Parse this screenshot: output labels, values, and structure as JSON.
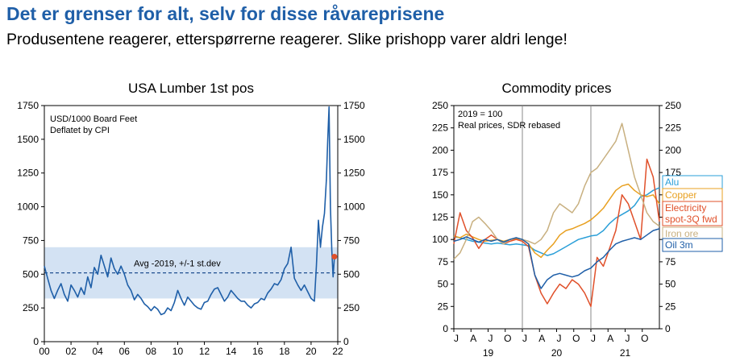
{
  "page": {
    "title": "Det er grenser for alt, selv for disse råvareprisene",
    "subtitle": "Produsentene reagerer, etterspørrerne reagerer. Slike prishopp varer aldri lenge!"
  },
  "chart_data": [
    {
      "type": "line",
      "title": "USA Lumber 1st pos",
      "notes": [
        "USD/1000 Board Feet",
        "Deflatet by CPI"
      ],
      "band_label": "Avg -2019, +/-1 st.dev",
      "colors": {
        "line": "#1f5fa8",
        "band": "#d3e2f3",
        "marker": "#e0502a"
      },
      "ylim": [
        0,
        1750
      ],
      "yticks": [
        0,
        250,
        500,
        750,
        1000,
        1250,
        1500,
        1750
      ],
      "xlim": [
        2000,
        2022
      ],
      "xticks": [
        "00",
        "02",
        "04",
        "06",
        "08",
        "10",
        "12",
        "14",
        "16",
        "18",
        "20",
        "22"
      ],
      "avg": 510,
      "band": [
        320,
        700
      ],
      "last_value": 630,
      "series": [
        {
          "x": [
            2000,
            2000.25,
            2000.5,
            2000.75,
            2001,
            2001.25,
            2001.5,
            2001.75,
            2002,
            2002.25,
            2002.5,
            2002.75,
            2003,
            2003.25,
            2003.5,
            2003.75,
            2004,
            2004.25,
            2004.5,
            2004.75,
            2005,
            2005.25,
            2005.5,
            2005.75,
            2006,
            2006.25,
            2006.5,
            2006.75,
            2007,
            2007.25,
            2007.5,
            2007.75,
            2008,
            2008.25,
            2008.5,
            2008.75,
            2009,
            2009.25,
            2009.5,
            2009.75,
            2010,
            2010.25,
            2010.5,
            2010.75,
            2011,
            2011.25,
            2011.5,
            2011.75,
            2012,
            2012.25,
            2012.5,
            2012.75,
            2013,
            2013.25,
            2013.5,
            2013.75,
            2014,
            2014.25,
            2014.5,
            2014.75,
            2015,
            2015.25,
            2015.5,
            2015.75,
            2016,
            2016.25,
            2016.5,
            2016.75,
            2017,
            2017.25,
            2017.5,
            2017.75,
            2018,
            2018.25,
            2018.5,
            2018.75,
            2019,
            2019.25,
            2019.5,
            2019.75,
            2020,
            2020.25,
            2020.4,
            2020.55,
            2020.7,
            2020.85,
            2021,
            2021.15,
            2021.25,
            2021.35,
            2021.45,
            2021.55,
            2021.65,
            2021.75
          ],
          "values": [
            560,
            470,
            380,
            320,
            380,
            430,
            350,
            300,
            420,
            380,
            330,
            400,
            350,
            480,
            400,
            550,
            500,
            640,
            560,
            480,
            620,
            540,
            500,
            560,
            500,
            420,
            380,
            310,
            350,
            320,
            280,
            260,
            230,
            260,
            240,
            200,
            210,
            250,
            230,
            290,
            380,
            320,
            270,
            330,
            300,
            270,
            250,
            240,
            290,
            300,
            350,
            390,
            400,
            350,
            300,
            330,
            380,
            350,
            320,
            300,
            300,
            270,
            250,
            280,
            290,
            320,
            310,
            360,
            390,
            430,
            420,
            460,
            540,
            580,
            700,
            470,
            420,
            380,
            420,
            370,
            320,
            300,
            560,
            900,
            700,
            850,
            950,
            1200,
            1500,
            1740,
            1000,
            680,
            480,
            630
          ]
        }
      ]
    },
    {
      "type": "line",
      "title": "Commodity prices",
      "notes": [
        "2019 = 100",
        "Real prices, SDR rebased"
      ],
      "ylim": [
        0,
        250
      ],
      "yticks": [
        0,
        25,
        50,
        75,
        100,
        125,
        150,
        175,
        200,
        225,
        250
      ],
      "xticks": [
        "J",
        "A",
        "J",
        "O",
        "J",
        "A",
        "J",
        "O",
        "J",
        "A",
        "J",
        "O"
      ],
      "year_labels": [
        "19",
        "20",
        "21"
      ],
      "series": [
        {
          "name": "Alu",
          "color": "#2a9fd8",
          "x": [
            0,
            1,
            2,
            3,
            4,
            5,
            6,
            7,
            8,
            9,
            10,
            11,
            12,
            13,
            14,
            15,
            16,
            17,
            18,
            19,
            20,
            21,
            22,
            23,
            24,
            25,
            26,
            27,
            28,
            29,
            30,
            31,
            32,
            33
          ],
          "values": [
            103,
            102,
            100,
            98,
            97,
            96,
            95,
            96,
            95,
            94,
            95,
            94,
            93,
            88,
            85,
            82,
            84,
            88,
            92,
            96,
            100,
            102,
            104,
            105,
            110,
            118,
            124,
            128,
            132,
            138,
            148,
            150,
            155,
            158
          ]
        },
        {
          "name": "Copper",
          "color": "#e8a020",
          "x": [
            0,
            1,
            2,
            3,
            4,
            5,
            6,
            7,
            8,
            9,
            10,
            11,
            12,
            13,
            14,
            15,
            16,
            17,
            18,
            19,
            20,
            21,
            22,
            23,
            24,
            25,
            26,
            27,
            28,
            29,
            30,
            31,
            32,
            33
          ],
          "values": [
            104,
            102,
            106,
            103,
            100,
            98,
            99,
            100,
            98,
            100,
            101,
            100,
            95,
            85,
            80,
            88,
            95,
            105,
            110,
            112,
            115,
            118,
            122,
            128,
            135,
            145,
            155,
            160,
            162,
            155,
            150,
            148,
            150,
            140
          ]
        },
        {
          "name": "Electricity spot-3Q fwd",
          "color": "#e0502a",
          "x": [
            0,
            1,
            2,
            3,
            4,
            5,
            6,
            7,
            8,
            9,
            10,
            11,
            12,
            13,
            14,
            15,
            16,
            17,
            18,
            19,
            20,
            21,
            22,
            23,
            24,
            25,
            26,
            27,
            28,
            29,
            30,
            31,
            32,
            33
          ],
          "values": [
            95,
            130,
            110,
            102,
            90,
            100,
            105,
            100,
            95,
            98,
            100,
            98,
            92,
            60,
            40,
            28,
            40,
            50,
            45,
            55,
            50,
            40,
            25,
            80,
            70,
            90,
            110,
            150,
            140,
            120,
            100,
            190,
            170,
            120
          ]
        },
        {
          "name": "Iron ore",
          "color": "#c8b080",
          "x": [
            0,
            1,
            2,
            3,
            4,
            5,
            6,
            7,
            8,
            9,
            10,
            11,
            12,
            13,
            14,
            15,
            16,
            17,
            18,
            19,
            20,
            21,
            22,
            23,
            24,
            25,
            26,
            27,
            28,
            29,
            30,
            31,
            32,
            33
          ],
          "values": [
            78,
            85,
            100,
            120,
            125,
            118,
            110,
            100,
            95,
            100,
            102,
            100,
            98,
            95,
            100,
            110,
            130,
            140,
            135,
            130,
            140,
            160,
            175,
            180,
            190,
            200,
            210,
            230,
            200,
            170,
            150,
            130,
            120,
            115
          ]
        },
        {
          "name": "Oil 3m",
          "color": "#1f5fa8",
          "x": [
            0,
            1,
            2,
            3,
            4,
            5,
            6,
            7,
            8,
            9,
            10,
            11,
            12,
            13,
            14,
            15,
            16,
            17,
            18,
            19,
            20,
            21,
            22,
            23,
            24,
            25,
            26,
            27,
            28,
            29,
            30,
            31,
            32,
            33
          ],
          "values": [
            98,
            100,
            103,
            100,
            97,
            100,
            98,
            100,
            97,
            100,
            102,
            100,
            95,
            60,
            45,
            55,
            60,
            62,
            60,
            58,
            60,
            65,
            68,
            75,
            80,
            88,
            95,
            98,
            100,
            102,
            100,
            105,
            110,
            112
          ]
        }
      ]
    }
  ]
}
